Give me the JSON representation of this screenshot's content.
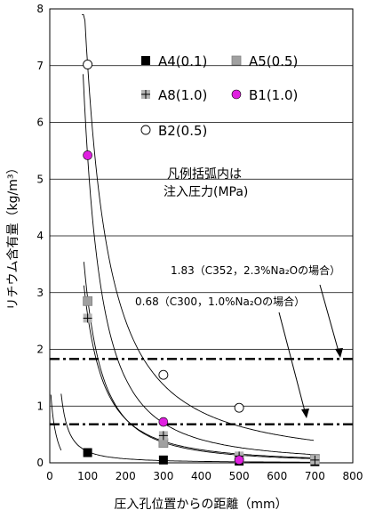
{
  "chart_data": {
    "type": "scatter",
    "xlabel": "圧入孔位置からの距離（mm）",
    "ylabel": "リチウム含有量（kg/m³）",
    "xlim": [
      0,
      800
    ],
    "ylim": [
      0,
      8
    ],
    "xticks": [
      "0",
      "100",
      "200",
      "300",
      "400",
      "500",
      "600",
      "700",
      "800"
    ],
    "yticks": [
      "0",
      "1",
      "2",
      "3",
      "4",
      "5",
      "6",
      "7",
      "8"
    ],
    "grid": "horizontal",
    "series": [
      {
        "name": "A4(0.1)",
        "marker": "filled-square",
        "color": "#000000",
        "x": [
          100,
          300,
          500,
          700
        ],
        "y": [
          0.18,
          0.05,
          0.03,
          0.02
        ]
      },
      {
        "name": "A5(0.5)",
        "marker": "gray-square",
        "color": "#a0a0a0",
        "x": [
          100,
          300,
          500,
          700
        ],
        "y": [
          2.85,
          0.35,
          0.08,
          0.07
        ]
      },
      {
        "name": "A8(1.0)",
        "marker": "plus-square",
        "color": "#a0a0a0",
        "x": [
          100,
          300,
          500,
          700
        ],
        "y": [
          2.55,
          0.48,
          0.12,
          0.05
        ]
      },
      {
        "name": "B1(1.0)",
        "marker": "magenta-circle",
        "color": "#e020e0",
        "x": [
          100,
          300,
          500
        ],
        "y": [
          5.42,
          0.72,
          0.05
        ]
      },
      {
        "name": "B2(0.5)",
        "marker": "open-circle",
        "color": "#000000",
        "x": [
          100,
          300,
          500
        ],
        "y": [
          7.02,
          1.55,
          0.97
        ]
      }
    ],
    "legend_note": [
      "凡例括弧内は",
      "注入圧力(MPa)"
    ],
    "reference_lines": [
      {
        "value": 1.83,
        "label": "1.83（C352，2.3%Na₂Oの場合）"
      },
      {
        "value": 0.68,
        "label": "0.68（C300，1.0%Na₂Oの場合）"
      }
    ]
  }
}
